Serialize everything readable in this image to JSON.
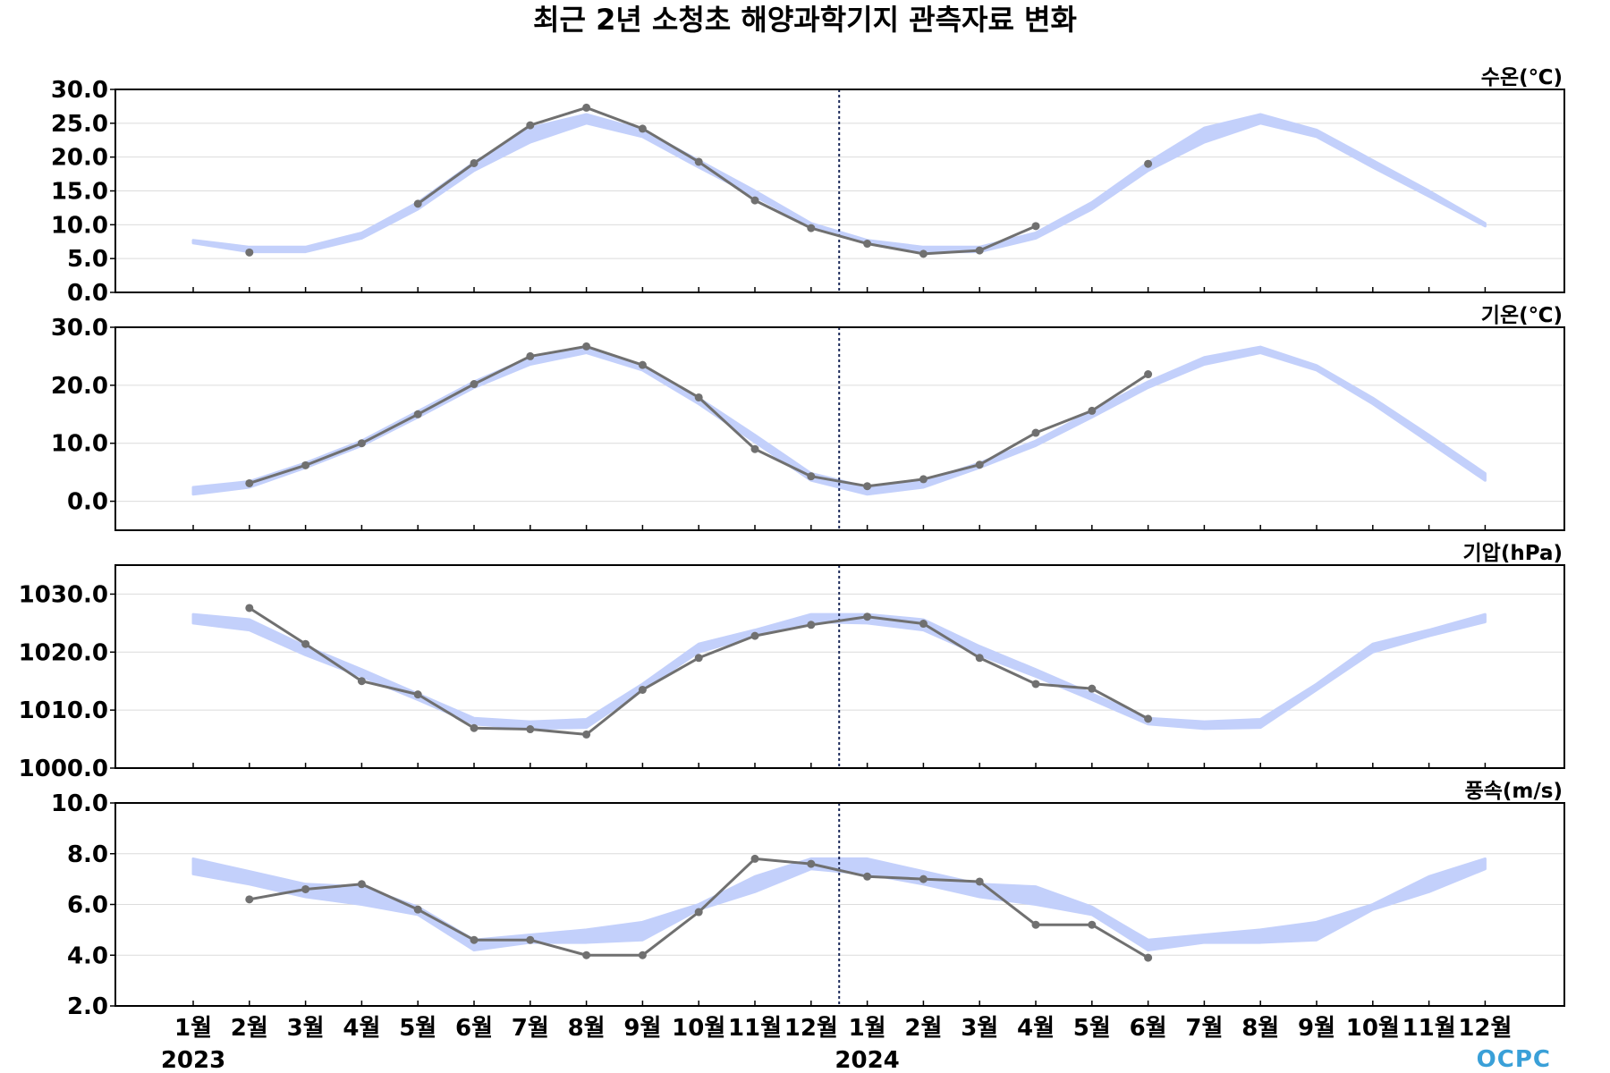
{
  "title": "최근 2년 소청초 해양과학기지 관측자료 변화",
  "logo_text": "OCPC",
  "colors": {
    "observed_line": "#707070",
    "climatology_band": "#c3d0fb",
    "divider": "#1c2a5a",
    "gridline": "#dcdcdc"
  },
  "chart_data": [
    {
      "type": "line",
      "panel_label": "수온(℃)",
      "ylim": [
        0,
        30
      ],
      "yticks": [
        0,
        5,
        10,
        15,
        20,
        25,
        30
      ],
      "ytick_labels": [
        "0.0",
        "5.0",
        "10.0",
        "15.0",
        "20.0",
        "25.0",
        "30.0"
      ],
      "grid": true,
      "series": [
        {
          "kind": "band",
          "lower": [
            7.3,
            6.0,
            6.0,
            8.0,
            12.3,
            18.0,
            22.2,
            25.0,
            23.0,
            18.5,
            14.2,
            9.8,
            7.3,
            6.0,
            6.0,
            8.0,
            12.3,
            18.0,
            22.2,
            25.0,
            23.0,
            18.5,
            14.2,
            9.8
          ],
          "upper": [
            7.7,
            6.7,
            6.7,
            8.8,
            13.3,
            19.2,
            24.3,
            26.3,
            24.0,
            19.5,
            15.0,
            10.2,
            7.7,
            6.7,
            6.7,
            8.8,
            13.3,
            19.2,
            24.3,
            26.3,
            24.0,
            19.5,
            15.0,
            10.2
          ]
        },
        {
          "kind": "observed",
          "values": [
            null,
            5.9,
            null,
            null,
            13.1,
            19.1,
            24.7,
            27.3,
            24.2,
            19.3,
            13.6,
            9.5,
            7.2,
            5.7,
            6.2,
            9.8,
            null,
            19.0,
            null,
            null,
            null,
            null,
            null,
            null
          ]
        }
      ]
    },
    {
      "type": "line",
      "panel_label": "기온(℃)",
      "ylim": [
        -5,
        30
      ],
      "yticks": [
        0,
        10,
        20,
        30
      ],
      "ytick_labels": [
        "0.0",
        "10.0",
        "20.0",
        "30.0"
      ],
      "grid": true,
      "series": [
        {
          "kind": "band",
          "lower": [
            1.2,
            2.4,
            5.8,
            9.6,
            14.5,
            19.6,
            23.6,
            25.6,
            22.6,
            16.8,
            10.2,
            3.6,
            1.2,
            2.4,
            5.8,
            9.6,
            14.5,
            19.6,
            23.6,
            25.6,
            22.6,
            16.8,
            10.2,
            3.6
          ],
          "upper": [
            2.4,
            3.4,
            6.6,
            10.4,
            15.5,
            20.6,
            24.8,
            26.6,
            23.4,
            17.8,
            11.4,
            4.8,
            2.4,
            3.4,
            6.6,
            10.4,
            15.5,
            20.6,
            24.8,
            26.6,
            23.4,
            17.8,
            11.4,
            4.8
          ]
        },
        {
          "kind": "observed",
          "values": [
            null,
            3.1,
            6.2,
            10.0,
            15.0,
            20.2,
            25.0,
            26.7,
            23.5,
            17.9,
            9.0,
            4.3,
            2.6,
            3.8,
            6.3,
            11.8,
            15.6,
            21.9,
            null,
            null,
            null,
            null,
            null,
            null
          ]
        }
      ]
    },
    {
      "type": "line",
      "panel_label": "기압(hPa)",
      "ylim": [
        1000,
        1035
      ],
      "yticks": [
        1000,
        1010,
        1020,
        1030
      ],
      "ytick_labels": [
        "1000.0",
        "1010.0",
        "1020.0",
        "1030.0"
      ],
      "grid": true,
      "series": [
        {
          "kind": "band",
          "lower": [
            1025.0,
            1023.8,
            1019.5,
            1015.8,
            1011.8,
            1007.6,
            1006.8,
            1007.0,
            1013.5,
            1020.0,
            1022.8,
            1025.2,
            1025.0,
            1023.8,
            1019.5,
            1015.8,
            1011.8,
            1007.6,
            1006.8,
            1007.0,
            1013.5,
            1020.0,
            1022.8,
            1025.2
          ],
          "upper": [
            1026.5,
            1025.6,
            1021.0,
            1017.0,
            1012.8,
            1008.6,
            1008.0,
            1008.4,
            1014.5,
            1021.4,
            1023.8,
            1026.5,
            1026.5,
            1025.6,
            1021.0,
            1017.0,
            1012.8,
            1008.6,
            1008.0,
            1008.4,
            1014.5,
            1021.4,
            1023.8,
            1026.5
          ]
        },
        {
          "kind": "observed",
          "values": [
            null,
            1027.6,
            1021.4,
            1015.0,
            1012.7,
            1006.9,
            1006.7,
            1005.8,
            1013.5,
            1019.0,
            1022.8,
            1024.7,
            1026.1,
            1024.9,
            1019.0,
            1014.5,
            1013.7,
            1008.5,
            null,
            null,
            null,
            null,
            null,
            null
          ]
        }
      ]
    },
    {
      "type": "line",
      "panel_label": "풍속(m/s)",
      "ylim": [
        2,
        10
      ],
      "yticks": [
        2,
        4,
        6,
        8,
        10
      ],
      "ytick_labels": [
        "2.0",
        "4.0",
        "6.0",
        "8.0",
        "10.0"
      ],
      "grid": true,
      "series": [
        {
          "kind": "band",
          "lower": [
            7.2,
            6.8,
            6.3,
            6.0,
            5.6,
            4.2,
            4.5,
            4.5,
            4.6,
            5.8,
            6.5,
            7.4,
            7.2,
            6.8,
            6.3,
            6.0,
            5.6,
            4.2,
            4.5,
            4.5,
            4.6,
            5.8,
            6.5,
            7.4
          ],
          "upper": [
            7.8,
            7.3,
            6.8,
            6.7,
            5.9,
            4.6,
            4.8,
            5.0,
            5.3,
            6.0,
            7.1,
            7.8,
            7.8,
            7.3,
            6.8,
            6.7,
            5.9,
            4.6,
            4.8,
            5.0,
            5.3,
            6.0,
            7.1,
            7.8
          ]
        },
        {
          "kind": "observed",
          "values": [
            null,
            6.2,
            6.6,
            6.8,
            5.8,
            4.6,
            4.6,
            4.0,
            4.0,
            5.7,
            7.8,
            7.6,
            7.1,
            7.0,
            6.9,
            5.2,
            5.2,
            3.9,
            null,
            null,
            null,
            null,
            null,
            null
          ]
        }
      ]
    }
  ],
  "x_axis": {
    "categories": [
      "1월",
      "2월",
      "3월",
      "4월",
      "5월",
      "6월",
      "7월",
      "8월",
      "9월",
      "10월",
      "11월",
      "12월",
      "1월",
      "2월",
      "3월",
      "4월",
      "5월",
      "6월",
      "7월",
      "8월",
      "9월",
      "10월",
      "11월",
      "12월"
    ],
    "years": [
      {
        "label": "2023",
        "at_index": 0
      },
      {
        "label": "2024",
        "at_index": 12
      }
    ],
    "year_divider_between": [
      11,
      12
    ]
  }
}
